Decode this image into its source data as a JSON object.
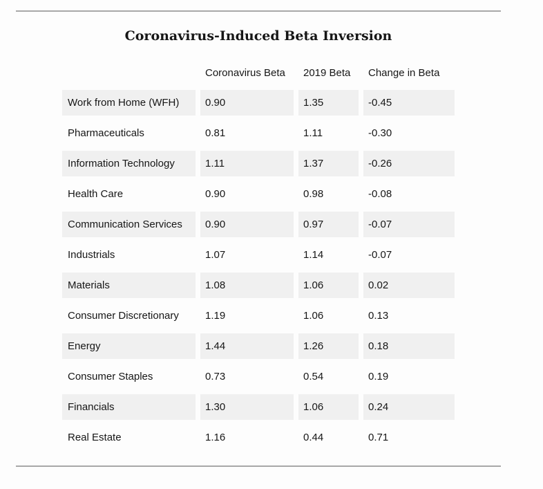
{
  "title": "Coronavirus-Induced Beta Inversion",
  "table": {
    "columns": [
      "",
      "Coronavirus Beta",
      "2019 Beta",
      "Change in Beta"
    ],
    "rows": [
      {
        "label": "Work from Home (WFH)",
        "coronavirus_beta": "0.90",
        "beta_2019": "1.35",
        "change": "-0.45"
      },
      {
        "label": "Pharmaceuticals",
        "coronavirus_beta": "0.81",
        "beta_2019": "1.11",
        "change": "-0.30"
      },
      {
        "label": "Information Technology",
        "coronavirus_beta": "1.11",
        "beta_2019": "1.37",
        "change": "-0.26"
      },
      {
        "label": "Health Care",
        "coronavirus_beta": "0.90",
        "beta_2019": "0.98",
        "change": "-0.08"
      },
      {
        "label": "Communication Services",
        "coronavirus_beta": "0.90",
        "beta_2019": "0.97",
        "change": "-0.07"
      },
      {
        "label": "Industrials",
        "coronavirus_beta": "1.07",
        "beta_2019": "1.14",
        "change": "-0.07"
      },
      {
        "label": "Materials",
        "coronavirus_beta": "1.08",
        "beta_2019": "1.06",
        "change": "0.02"
      },
      {
        "label": "Consumer Discretionary",
        "coronavirus_beta": "1.19",
        "beta_2019": "1.06",
        "change": "0.13"
      },
      {
        "label": "Energy",
        "coronavirus_beta": "1.44",
        "beta_2019": "1.26",
        "change": "0.18"
      },
      {
        "label": "Consumer Staples",
        "coronavirus_beta": "0.73",
        "beta_2019": "0.54",
        "change": "0.19"
      },
      {
        "label": "Financials",
        "coronavirus_beta": "1.30",
        "beta_2019": "1.06",
        "change": "0.24"
      },
      {
        "label": "Real Estate",
        "coronavirus_beta": "1.16",
        "beta_2019": "0.44",
        "change": "0.71"
      }
    ]
  },
  "chart_data": {
    "type": "table",
    "title": "Coronavirus-Induced Beta Inversion",
    "categories": [
      "Work from Home (WFH)",
      "Pharmaceuticals",
      "Information Technology",
      "Health Care",
      "Communication Services",
      "Industrials",
      "Materials",
      "Consumer Discretionary",
      "Energy",
      "Consumer Staples",
      "Financials",
      "Real Estate"
    ],
    "series": [
      {
        "name": "Coronavirus Beta",
        "values": [
          0.9,
          0.81,
          1.11,
          0.9,
          0.9,
          1.07,
          1.08,
          1.19,
          1.44,
          0.73,
          1.3,
          1.16
        ]
      },
      {
        "name": "2019 Beta",
        "values": [
          1.35,
          1.11,
          1.37,
          0.98,
          0.97,
          1.14,
          1.06,
          1.06,
          1.26,
          0.54,
          1.06,
          0.44
        ]
      },
      {
        "name": "Change in Beta",
        "values": [
          -0.45,
          -0.3,
          -0.26,
          -0.08,
          -0.07,
          -0.07,
          0.02,
          0.13,
          0.18,
          0.19,
          0.24,
          0.71
        ]
      }
    ],
    "layout": {
      "row_stripe_color": "#f0f0f0",
      "rule_color": "#a8a8a8",
      "background": "#fdfdfd",
      "text_color": "#161616"
    }
  }
}
